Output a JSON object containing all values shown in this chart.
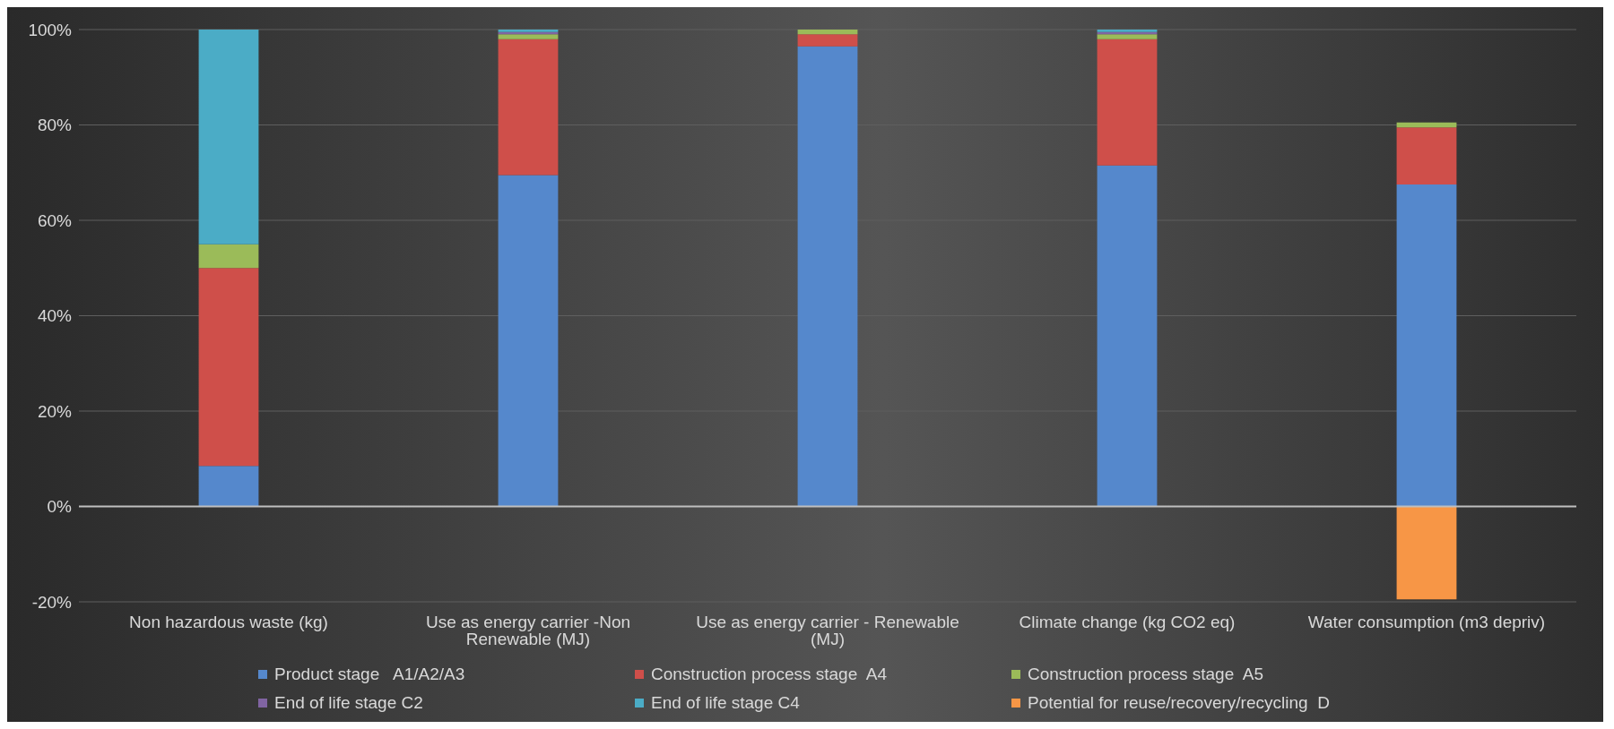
{
  "chart_data": {
    "type": "bar",
    "stacked": true,
    "categories": [
      "Non hazardous waste (kg)",
      "Use as energy carrier -Non Renewable (MJ)",
      "Use as energy carrier - Renewable (MJ)",
      "Climate change (kg CO2 eq)",
      "Water consumption (m3 depriv)"
    ],
    "series": [
      {
        "name": "Product stage   A1/A2/A3",
        "color": "#5588cc",
        "values": [
          8.5,
          69.5,
          96.5,
          71.5,
          67.5
        ]
      },
      {
        "name": "Construction process stage  A4",
        "color": "#cf4f4a",
        "values": [
          41.5,
          28.5,
          2.5,
          26.5,
          12
        ]
      },
      {
        "name": "Construction process stage  A5",
        "color": "#9bbb59",
        "values": [
          5,
          1,
          1,
          1,
          1
        ]
      },
      {
        "name": "End of life stage C2",
        "color": "#8064a2",
        "values": [
          0,
          0.5,
          0,
          0.5,
          0
        ]
      },
      {
        "name": "End of life stage C4",
        "color": "#4bacc6",
        "values": [
          45,
          0.5,
          0,
          0.5,
          0
        ]
      },
      {
        "name": "Potential for reuse/recovery/recycling  D",
        "color": "#f79646",
        "values": [
          0,
          0,
          0,
          0,
          -19.5
        ]
      }
    ],
    "ylim": [
      -20,
      100
    ],
    "yticks": [
      {
        "value": -20,
        "label": "-20%"
      },
      {
        "value": 0,
        "label": "0%"
      },
      {
        "value": 20,
        "label": "20%"
      },
      {
        "value": 40,
        "label": "40%"
      },
      {
        "value": 60,
        "label": "60%"
      },
      {
        "value": 80,
        "label": "80%"
      },
      {
        "value": 100,
        "label": "100%"
      }
    ],
    "grid": "y",
    "legend": "bottom"
  }
}
